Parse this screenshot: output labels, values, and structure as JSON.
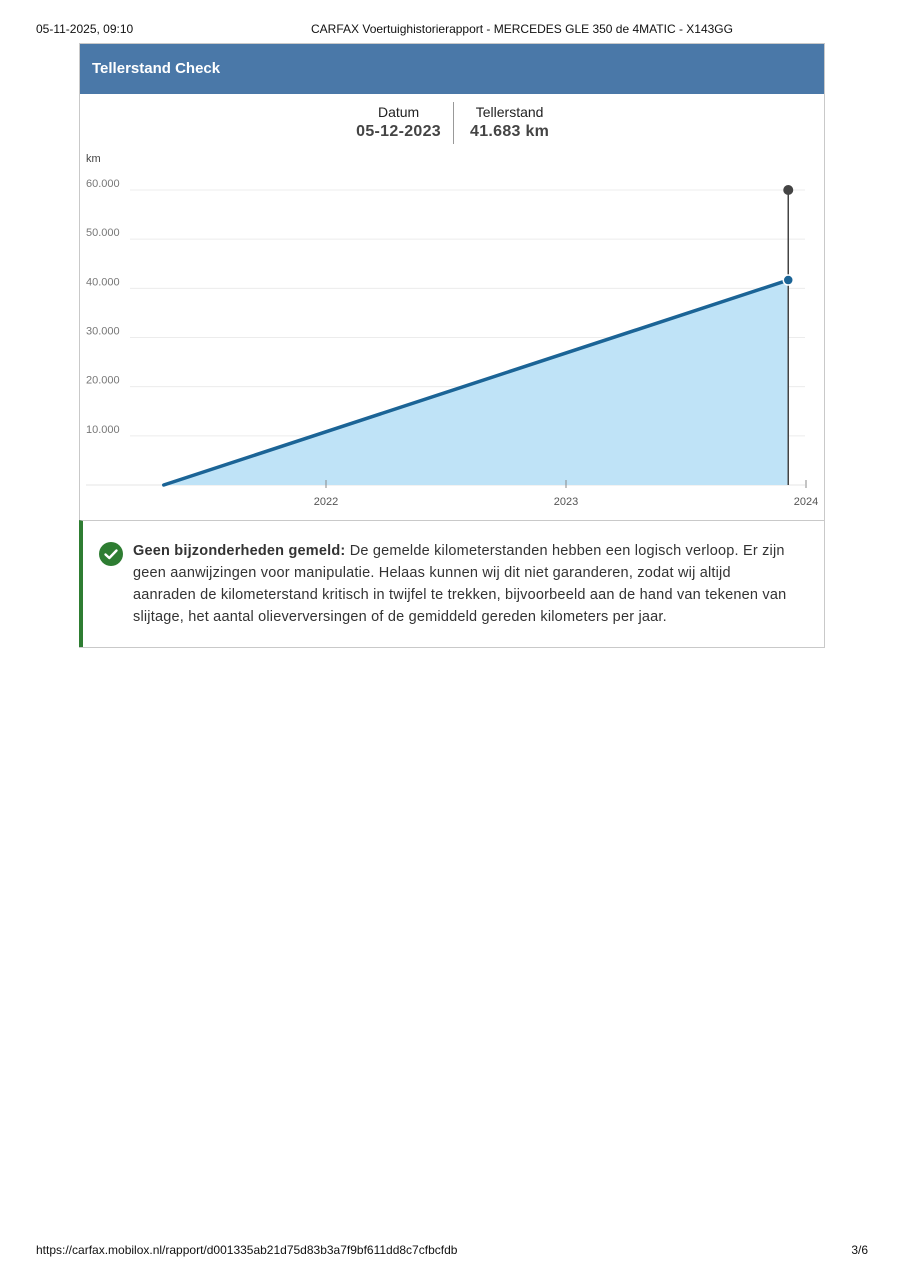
{
  "print_header": {
    "date": "05-11-2025, 09:10",
    "title": "CARFAX Voertuighistorierapport - MERCEDES GLE 350 de 4MATIC - X143GG"
  },
  "card": {
    "title": "Tellerstand Check",
    "readout": {
      "date_label": "Datum",
      "date_value": "05-12-2023",
      "odometer_label": "Tellerstand",
      "odometer_value": "41.683 km"
    },
    "notice": {
      "bold": "Geen bijzonderheden gemeld:",
      "text": " De gemelde kilometerstanden hebben een logisch verloop. Er zijn geen aanwijzingen voor manipulatie. Helaas kunnen wij dit niet garanderen, zodat wij altijd aanraden de kilometerstand kritisch in twijfel te trekken, bijvoorbeeld aan de hand van tekenen van slijtage, het aantal olieverversingen of de gemiddeld gereden kilometers per jaar.",
      "icon": "check-circle-icon",
      "accent_color": "#2e7d32"
    }
  },
  "chart_data": {
    "type": "area",
    "ylabel": "km",
    "ylim": [
      0,
      60000
    ],
    "yticks": [
      10000,
      20000,
      30000,
      40000,
      50000,
      60000
    ],
    "ytick_labels": [
      "10.000",
      "20.000",
      "30.000",
      "40.000",
      "50.000",
      "60.000"
    ],
    "xlim": [
      2021.25,
      2024.0
    ],
    "xticks": [
      2022,
      2023,
      2024
    ],
    "xtick_labels": [
      "2022",
      "2023",
      "2024"
    ],
    "series": [
      {
        "points": [
          [
            2021.32,
            0
          ],
          [
            2023.93,
            41683
          ]
        ],
        "color": "#1b6496",
        "fill": "#bfe3f7"
      }
    ],
    "cursor": {
      "x": 2023.93,
      "y": 41683
    },
    "grid": true
  },
  "print_footer": {
    "url": "https://carfax.mobilox.nl/rapport/d001335ab21d75d83b3a7f9bf611dd8c7cfbcfdb",
    "page": "3/6"
  }
}
